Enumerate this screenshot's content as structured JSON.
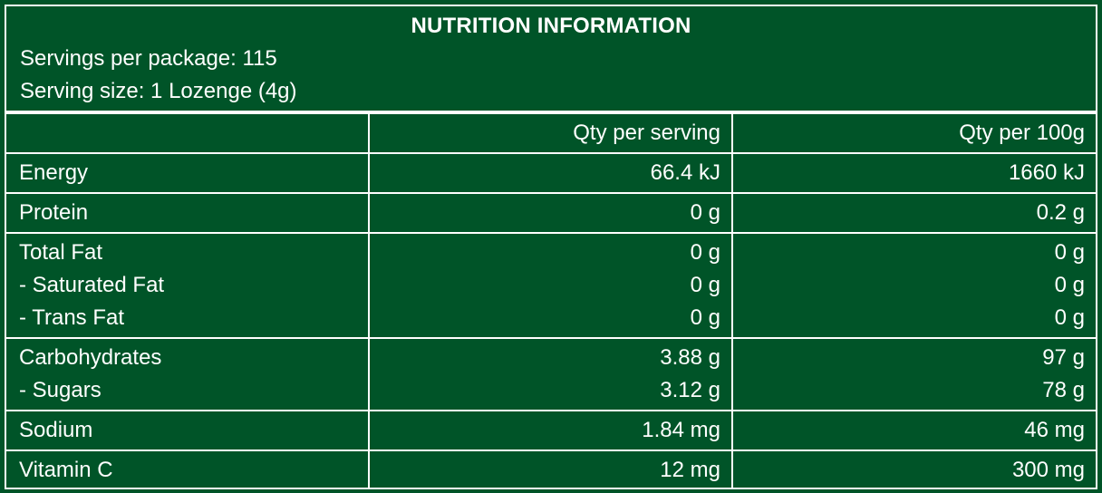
{
  "title": "NUTRITION INFORMATION",
  "servings_per_package": "Servings per package: 115",
  "serving_size": "Serving size: 1 Lozenge (4g)",
  "columns": [
    "",
    "Qty per serving",
    "Qty per 100g"
  ],
  "rows": [
    {
      "labels": [
        "Energy"
      ],
      "per_serving": [
        "66.4 kJ"
      ],
      "per_100g": [
        "1660 kJ"
      ]
    },
    {
      "labels": [
        "Protein"
      ],
      "per_serving": [
        "0 g"
      ],
      "per_100g": [
        "0.2 g"
      ]
    },
    {
      "labels": [
        "Total Fat",
        "- Saturated Fat",
        "- Trans Fat"
      ],
      "per_serving": [
        "0 g",
        "0 g",
        "0 g"
      ],
      "per_100g": [
        "0 g",
        "0 g",
        "0 g"
      ]
    },
    {
      "labels": [
        "Carbohydrates",
        "- Sugars"
      ],
      "per_serving": [
        "3.88 g",
        "3.12 g"
      ],
      "per_100g": [
        "97 g",
        "78 g"
      ]
    },
    {
      "labels": [
        "Sodium"
      ],
      "per_serving": [
        "1.84 mg"
      ],
      "per_100g": [
        "46 mg"
      ]
    },
    {
      "labels": [
        "Vitamin C"
      ],
      "per_serving": [
        "12 mg"
      ],
      "per_100g": [
        "300 mg"
      ]
    }
  ],
  "colors": {
    "background": "#005428",
    "text": "#ffffff",
    "border": "#ffffff"
  }
}
